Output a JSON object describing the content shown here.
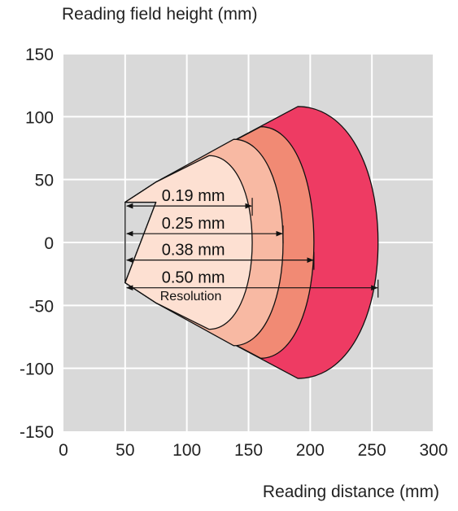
{
  "chart_data": {
    "type": "area",
    "title": "",
    "xlabel": "Reading distance (mm)",
    "ylabel": "Reading field height (mm)",
    "xlim": [
      0,
      300
    ],
    "ylim": [
      -150,
      150
    ],
    "xticks": [
      0,
      50,
      100,
      150,
      200,
      250,
      300
    ],
    "yticks": [
      150,
      100,
      50,
      0,
      -50,
      -100,
      -150
    ],
    "grid": true,
    "plot_background": "#d9d9d9",
    "grid_color": "#ffffff",
    "cone_apex": {
      "near_x": 50,
      "y_top": 32,
      "y_bottom": -32
    },
    "series": [
      {
        "name": "0.50 mm",
        "near_x": 75,
        "far_x": 255,
        "max_height": 108,
        "peak_x": 190,
        "color": "#ee3b63"
      },
      {
        "name": "0.38 mm",
        "near_x": 75,
        "far_x": 203,
        "max_height": 92,
        "peak_x": 160,
        "color": "#f18a74"
      },
      {
        "name": "0.25 mm",
        "near_x": 75,
        "far_x": 178,
        "max_height": 82,
        "peak_x": 138,
        "color": "#f8b9a3"
      },
      {
        "name": "0.19 mm",
        "near_x": 75,
        "far_x": 153,
        "max_height": 69,
        "peak_x": 118,
        "color": "#fde0d2"
      }
    ],
    "annotations": {
      "resolution_label": "Resolution",
      "resolutions": [
        {
          "label": "0.19 mm",
          "y": 32,
          "x_end": 153
        },
        {
          "label": "0.25 mm",
          "y": 10,
          "x_end": 178
        },
        {
          "label": "0.38 mm",
          "y": -11,
          "x_end": 203
        },
        {
          "label": "0.50 mm",
          "y": -33,
          "x_end": 255
        }
      ]
    }
  }
}
